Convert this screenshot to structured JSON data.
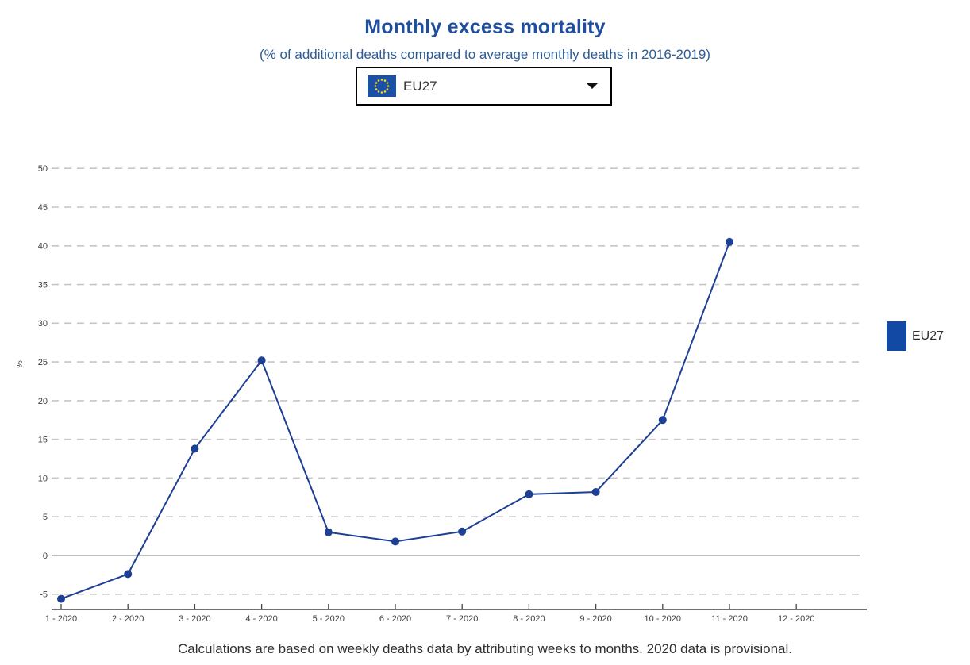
{
  "selector": {
    "selected_label": "EU27"
  },
  "legend": {
    "items": [
      {
        "label": "EU27",
        "color": "#1149a5"
      }
    ]
  },
  "footer": {
    "note": "Calculations are based on weekly deaths data by attributing weeks to months. 2020 data is provisional."
  },
  "colors": {
    "title": "#1f4e9e",
    "subtitle": "#2b5c97",
    "line": "#1d3f94",
    "marker": "#1d3f94",
    "grid_dashed": "#c6c6c6",
    "grid_zero": "#a8a8a8",
    "axis": "#444444",
    "tick_text": "#404040",
    "flag_blue": "#1a50a5",
    "flag_stars": "#ffd617"
  },
  "chart_data": {
    "type": "line",
    "title": "Monthly excess mortality",
    "subtitle": "(% of additional deaths compared to average monthly deaths in 2016-2019)",
    "categories": [
      "1 - 2020",
      "2 - 2020",
      "3 - 2020",
      "4 - 2020",
      "5 - 2020",
      "6 - 2020",
      "7 - 2020",
      "8 - 2020",
      "9 - 2020",
      "10 - 2020",
      "11 - 2020",
      "12 - 2020"
    ],
    "series": [
      {
        "name": "EU27",
        "values": [
          -5.6,
          -2.4,
          13.8,
          25.2,
          3.0,
          1.8,
          3.1,
          7.9,
          8.2,
          17.5,
          40.5,
          null
        ]
      }
    ],
    "xlabel": "",
    "ylabel": "%",
    "yticks": [
      -5,
      0,
      5,
      10,
      15,
      20,
      25,
      30,
      35,
      40,
      45,
      50
    ],
    "ylim": [
      -7,
      52
    ],
    "grid": "horizontal-dashed, zero-line-solid",
    "legend_position": "right"
  }
}
